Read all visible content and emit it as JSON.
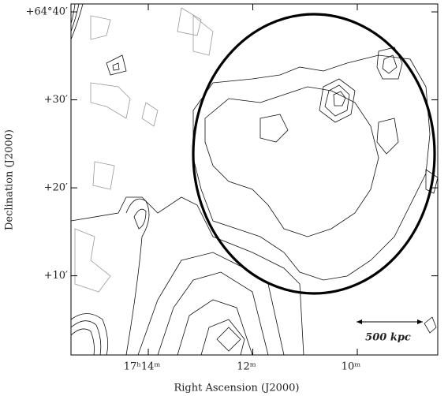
{
  "chart_data": {
    "type": "contour",
    "xlabel": "Right Ascension (J2000)",
    "ylabel": "Declination (J2000)",
    "annotations": [
      "500 kpc"
    ],
    "xlim": [
      1035.48,
      1028.46
    ],
    "xticks": [
      {
        "value": 1034,
        "label": "17ʰ14ᵐ"
      },
      {
        "value": 1032,
        "label": "12ᵐ"
      },
      {
        "value": 1030,
        "label": "10ᵐ"
      }
    ],
    "ylim": [
      3841,
      3880.9
    ],
    "yticks": [
      {
        "value": 3880,
        "label": "+64°40′"
      },
      {
        "value": 3870,
        "label": "+30′"
      },
      {
        "value": 3860,
        "label": "+20′"
      },
      {
        "value": 3850,
        "label": "+10′"
      }
    ]
  }
}
